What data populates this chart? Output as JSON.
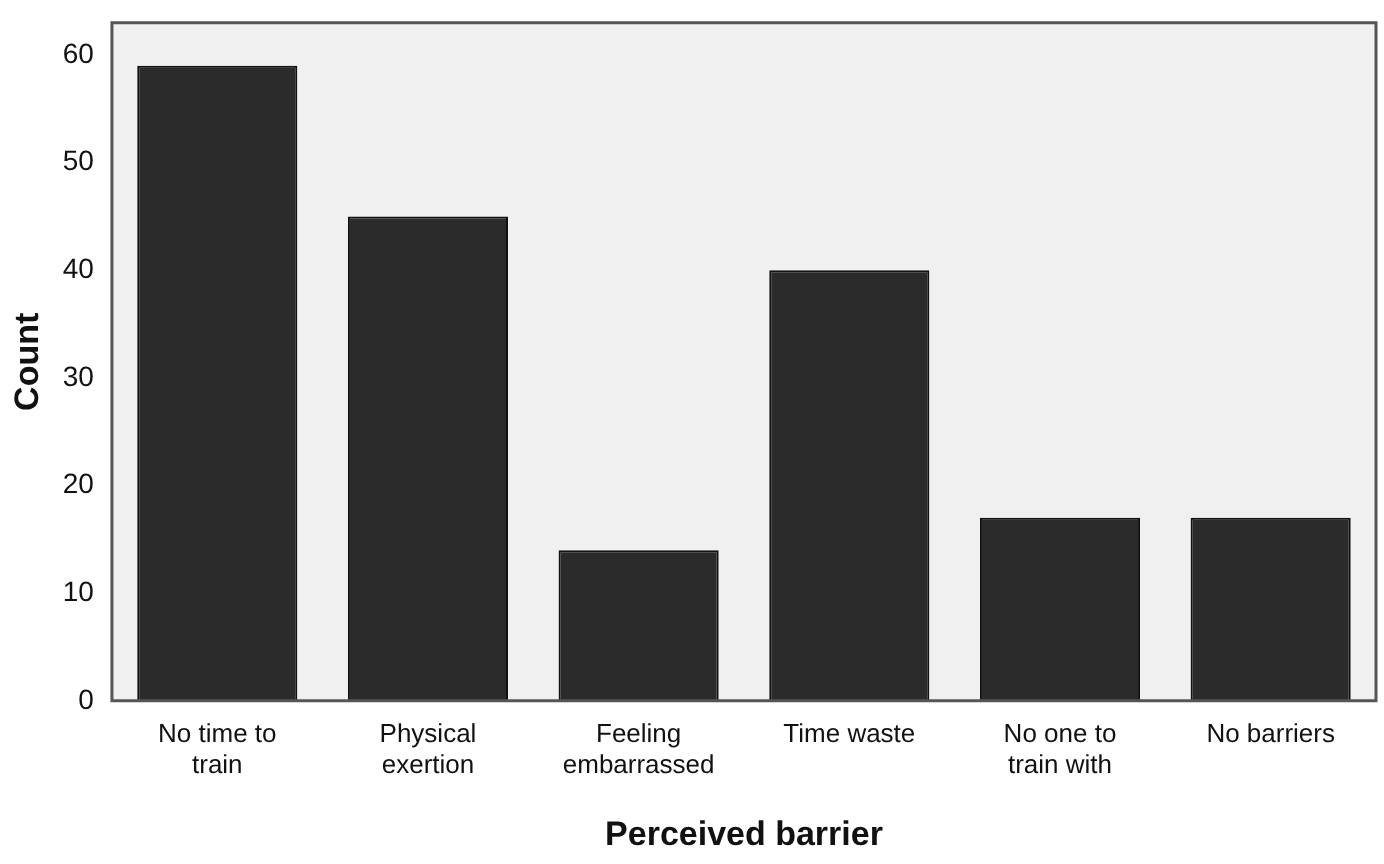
{
  "chart_data": {
    "type": "bar",
    "xlabel": "Perceived barrier",
    "ylabel": "Count",
    "categories": [
      "No time to train",
      "Physical exertion",
      "Feeling embarrassed",
      "Time waste",
      "No one to train with",
      "No barriers"
    ],
    "values": [
      59,
      45,
      14,
      40,
      17,
      17
    ],
    "color": "#2b2b2b",
    "ylim": [
      0,
      63
    ],
    "yticks": [
      0,
      10,
      20,
      30,
      40,
      50,
      60
    ],
    "grid": false,
    "legend": false
  }
}
